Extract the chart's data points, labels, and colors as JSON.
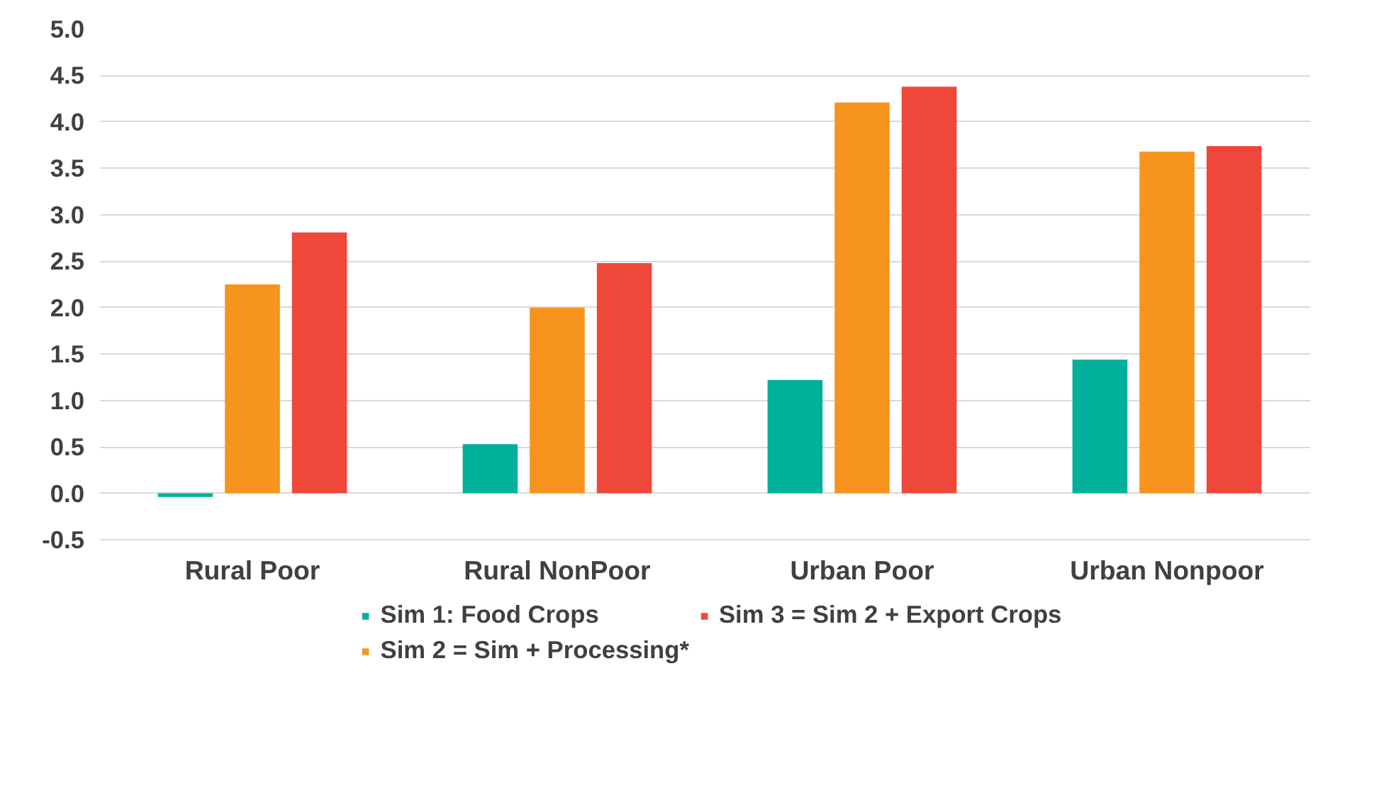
{
  "chart_data": {
    "type": "bar",
    "categories": [
      "Rural Poor",
      "Rural NonPoor",
      "Urban Poor",
      "Urban Nonpoor"
    ],
    "series": [
      {
        "name": "Sim 1: Food Crops",
        "color": "#00b09b",
        "values": [
          -0.04,
          0.53,
          1.22,
          1.44
        ]
      },
      {
        "name": "Sim 2 = Sim + Processing*",
        "color": "#f7941d",
        "values": [
          2.25,
          2.0,
          4.21,
          3.68
        ]
      },
      {
        "name": "Sim 3 = Sim 2 + Export Crops",
        "color": "#ef473a",
        "values": [
          2.81,
          2.48,
          4.38,
          3.74
        ]
      }
    ],
    "ylim": [
      -0.5,
      5.0
    ],
    "yticks": [
      {
        "value": -0.5,
        "label": "-0.5"
      },
      {
        "value": 0,
        "label": "0.0"
      },
      {
        "value": 0.5,
        "label": "0.5"
      },
      {
        "value": 1,
        "label": "1.0"
      },
      {
        "value": 1.5,
        "label": "1.5"
      },
      {
        "value": 2,
        "label": "2.0"
      },
      {
        "value": 2.5,
        "label": "2.5"
      },
      {
        "value": 3,
        "label": "3.0"
      },
      {
        "value": 3.5,
        "label": "3.5"
      },
      {
        "value": 4,
        "label": "4.0"
      },
      {
        "value": 4.5,
        "label": "4.5"
      },
      {
        "value": 5,
        "label": "5.0"
      }
    ],
    "grid": "y",
    "legend": "bottom"
  }
}
